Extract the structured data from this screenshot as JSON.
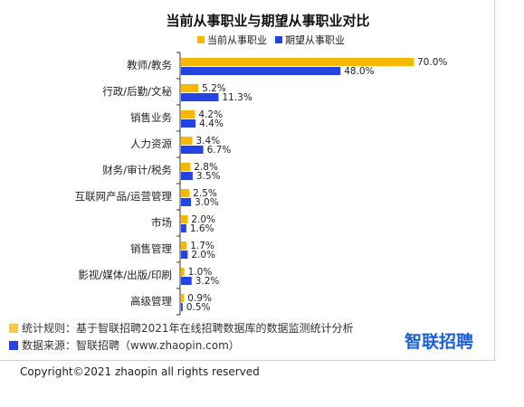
{
  "chart_data": {
    "type": "bar",
    "orientation": "horizontal",
    "title": "当前从事职业与期望从事职业对比",
    "legend_position": "top",
    "categories": [
      "教师/教务",
      "行政/后勤/文秘",
      "销售业务",
      "人力资源",
      "财务/审计/税务",
      "互联网产品/运营管理",
      "市场",
      "销售管理",
      "影视/媒体/出版/印刷",
      "高级管理"
    ],
    "series": [
      {
        "name": "当前从事职业",
        "color": "#f6b800",
        "values": [
          70.0,
          5.2,
          4.2,
          3.4,
          2.8,
          2.5,
          2.0,
          1.7,
          1.0,
          0.9
        ],
        "labels": [
          "70.0%",
          "5.2%",
          "4.2%",
          "3.4%",
          "2.8%",
          "2.5%",
          "2.0%",
          "1.7%",
          "1.0%",
          "0.9%"
        ]
      },
      {
        "name": "期望从事职业",
        "color": "#2443e0",
        "values": [
          48.0,
          11.3,
          4.4,
          6.7,
          3.5,
          3.0,
          1.6,
          2.0,
          3.2,
          0.5
        ],
        "labels": [
          "48.0%",
          "11.3%",
          "4.4%",
          "6.7%",
          "3.5%",
          "3.0%",
          "1.6%",
          "2.0%",
          "3.2%",
          "0.5%"
        ]
      }
    ],
    "xlim": [
      0,
      70
    ],
    "grid": false
  },
  "footer": {
    "note_rule": "统计规则：基于智联招聘2021年在线招聘数据库的数据监测统计分析",
    "note_source": "数据来源：智联招聘（www.zhaopin.com）",
    "rule_color": "#f6c94a",
    "source_color": "#2443e0",
    "brand": "智联招聘",
    "brand_color": "#1a5fd6",
    "copyright": "Copyright©2021 zhaopin all rights reserved"
  }
}
